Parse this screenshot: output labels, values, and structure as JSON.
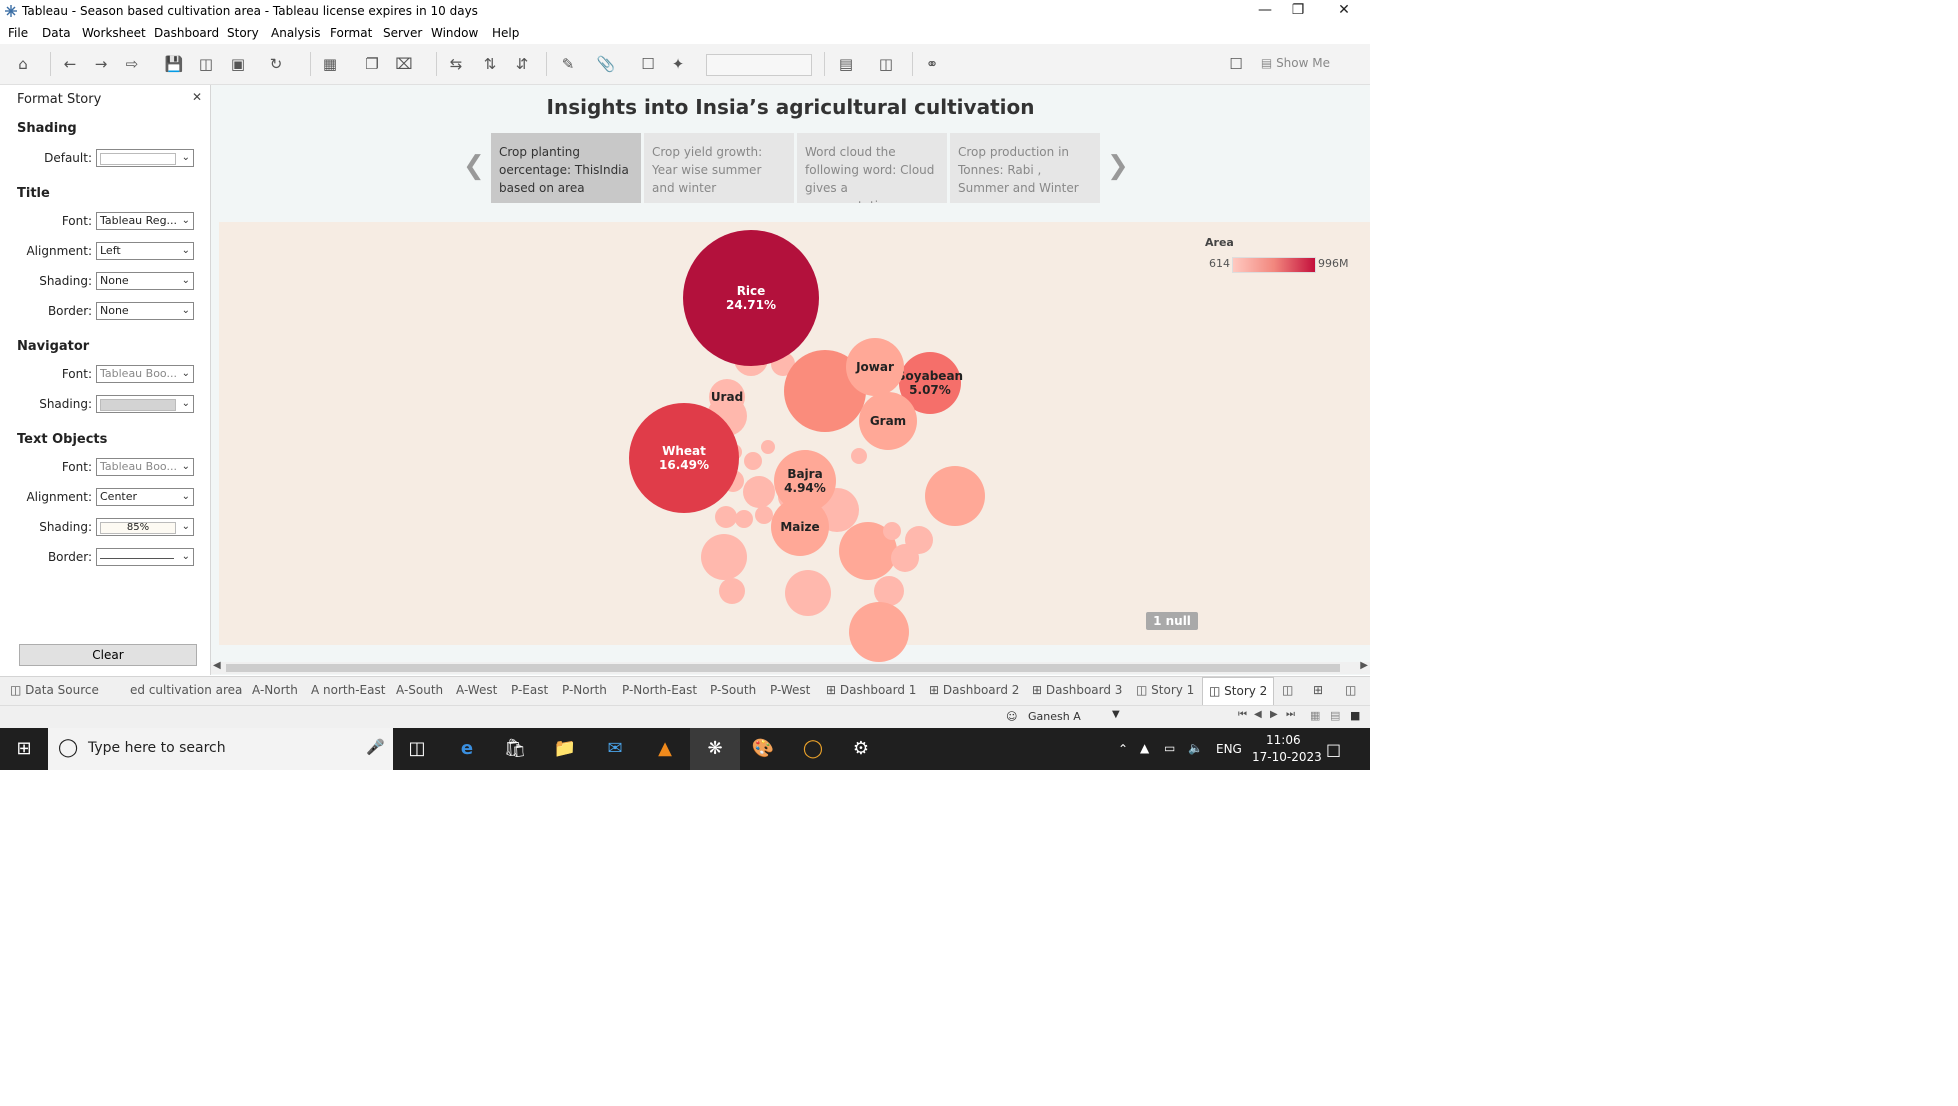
{
  "window": {
    "title": "Tableau - Season based cultivation area - Tableau license expires in 10 days",
    "minimize_icon": "minimize-icon",
    "restore_icon": "restore-icon",
    "close_icon": "close-icon"
  },
  "menu": [
    "File",
    "Data",
    "Worksheet",
    "Dashboard",
    "Story",
    "Analysis",
    "Format",
    "Server",
    "Window",
    "Help"
  ],
  "toolbar": {
    "show_me": "Show Me"
  },
  "format_panel": {
    "title": "Format Story",
    "shading": {
      "heading": "Shading",
      "default_label": "Default:"
    },
    "title_sec": {
      "heading": "Title",
      "font_label": "Font:",
      "font_value": "Tableau Reg...",
      "alignment_label": "Alignment:",
      "alignment_value": "Left",
      "shading_label": "Shading:",
      "shading_value": "None",
      "border_label": "Border:",
      "border_value": "None"
    },
    "navigator": {
      "heading": "Navigator",
      "font_label": "Font:",
      "font_value": "Tableau Boo...",
      "shading_label": "Shading:"
    },
    "text_objects": {
      "heading": "Text Objects",
      "font_label": "Font:",
      "font_value": "Tableau Boo...",
      "alignment_label": "Alignment:",
      "alignment_value": "Center",
      "shading_label": "Shading:",
      "shading_value": "85%",
      "border_label": "Border:"
    },
    "clear_label": "Clear"
  },
  "story": {
    "title": "Insights into Insia’s agricultural cultivation",
    "points": [
      "Crop planting oercentage: ThisIndia based on area",
      "Crop yield growth: Year wise summer and winter",
      "Word cloud the following word: Cloud gives a representation",
      "Crop production in Tonnes: Rabi , Summer and Winter"
    ]
  },
  "legend": {
    "title": "Area",
    "min": "614",
    "max": "996M"
  },
  "null_badge": "1 null",
  "chart_data": {
    "type": "packed-bubble",
    "measure": "Area",
    "labeled_bubbles": [
      {
        "name": "Rice",
        "pct": "24.71%"
      },
      {
        "name": "Wheat",
        "pct": "16.49%"
      },
      {
        "name": "Soyabean",
        "pct": "5.07%"
      },
      {
        "name": "Bajra",
        "pct": "4.94%"
      },
      {
        "name": "Jowar",
        "pct": ""
      },
      {
        "name": "Gram",
        "pct": ""
      },
      {
        "name": "Urad",
        "pct": ""
      },
      {
        "name": "Maize",
        "pct": ""
      }
    ],
    "color_range": [
      "#ffc9c0",
      "#c4103c"
    ]
  },
  "sheet_tabs": [
    "Data Source",
    "ed cultivation area",
    "A-North",
    "A north-East",
    "A-South",
    "A-West",
    "P-East",
    "P-North",
    "P-North-East",
    "P-South",
    "P-West",
    "Dashboard 1",
    "Dashboard 2",
    "Dashboard 3",
    "Story 1",
    "Story 2"
  ],
  "status": {
    "user": "Ganesh A"
  },
  "taskbar": {
    "search_placeholder": "Type here to search",
    "lang": "ENG",
    "time": "11:06",
    "date": "17-10-2023"
  }
}
